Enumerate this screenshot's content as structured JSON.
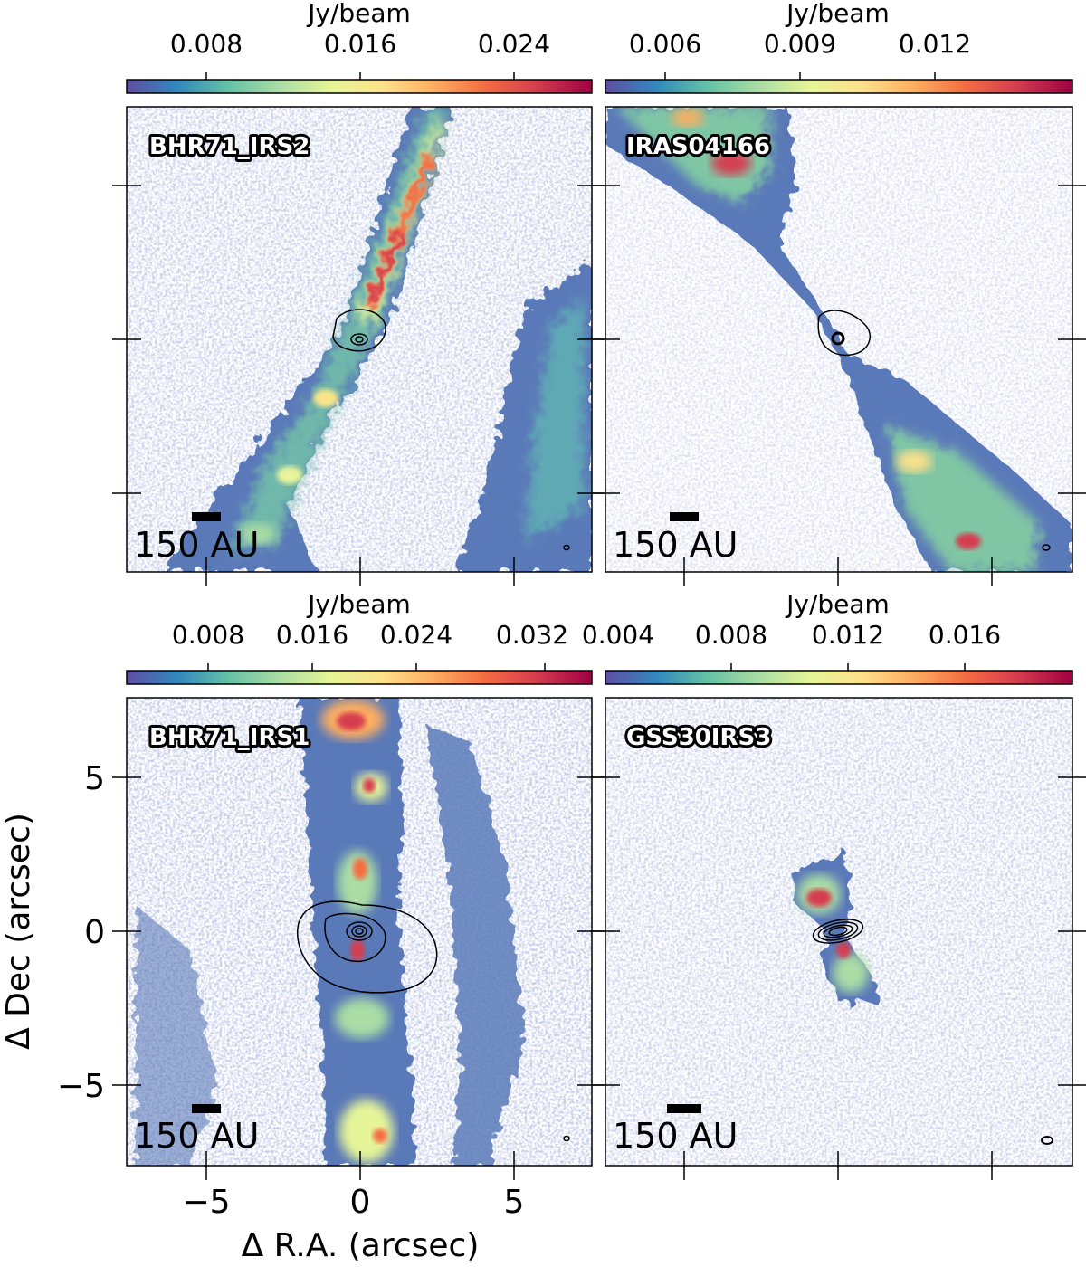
{
  "colorbar_title": "Jy/beam",
  "scale_label": "150 AU",
  "x_axis_label": "Δ R.A. (arcsec)",
  "y_axis_label": "Δ Dec (arcsec)",
  "x_ticks": [
    "−5",
    "0",
    "5"
  ],
  "y_ticks": [
    "5",
    "0",
    "−5"
  ],
  "colormap": "Spectral_r",
  "colormap_stops": [
    "#5e4fa2",
    "#3288bd",
    "#66c2a5",
    "#abdda4",
    "#e6f598",
    "#fee08b",
    "#fdae61",
    "#f46d43",
    "#d53e4f",
    "#9e0142"
  ],
  "panels": [
    {
      "id": "top-left",
      "title": "BHR71_IRS2",
      "colorbar_ticks": [
        "0.008",
        "0.016",
        "0.024"
      ]
    },
    {
      "id": "top-right",
      "title": "IRAS04166",
      "colorbar_ticks": [
        "0.006",
        "0.009",
        "0.012"
      ]
    },
    {
      "id": "bottom-left",
      "title": "BHR71_IRS1",
      "colorbar_ticks": [
        "0.008",
        "0.016",
        "0.024",
        "0.032"
      ]
    },
    {
      "id": "bottom-right",
      "title": "GSS30IRS3",
      "colorbar_ticks": [
        "0.004",
        "0.008",
        "0.012",
        "0.016"
      ]
    }
  ]
}
